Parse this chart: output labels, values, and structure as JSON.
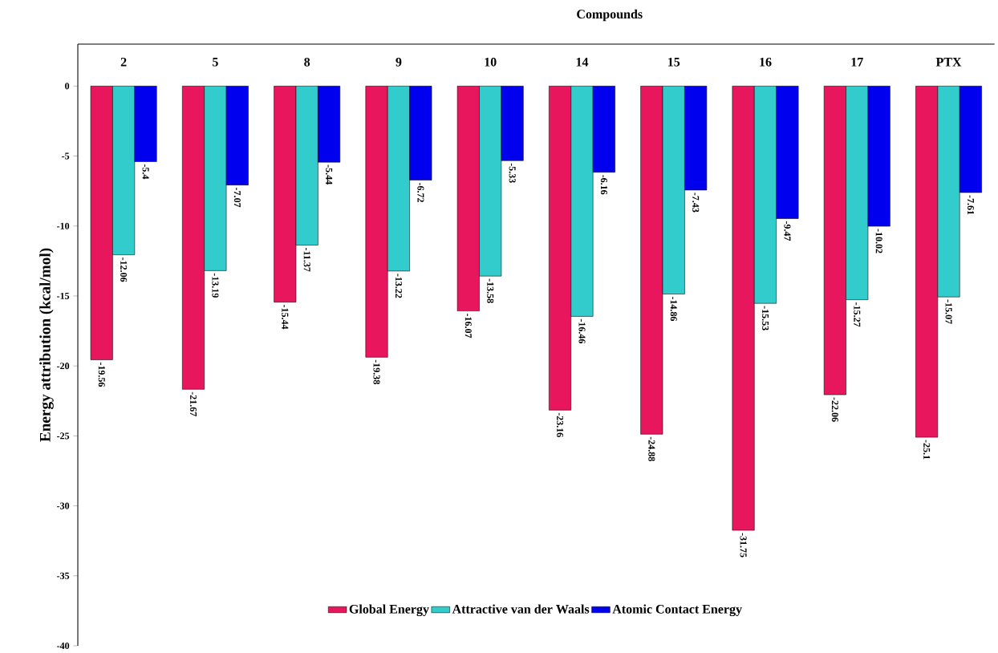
{
  "chart_data": {
    "type": "bar",
    "xlabel": "Compounds",
    "ylabel": "Energy attribution (kcal/mol)",
    "categories": [
      "2",
      "5",
      "8",
      "9",
      "10",
      "14",
      "15",
      "16",
      "17",
      "PTX"
    ],
    "series": [
      {
        "name": "Global Energy",
        "color": "#e8175d",
        "values": [
          -19.56,
          -21.67,
          -15.44,
          -19.38,
          -16.07,
          -23.16,
          -24.88,
          -31.75,
          -22.06,
          -25.1
        ]
      },
      {
        "name": "Attractive van der Waals",
        "color": "#33cccc",
        "values": [
          -12.06,
          -13.19,
          -11.37,
          -13.22,
          -13.58,
          -16.46,
          -14.86,
          -15.53,
          -15.27,
          -15.07
        ]
      },
      {
        "name": "Atomic Contact Energy",
        "color": "#0000ee",
        "values": [
          -5.4,
          -7.07,
          -5.44,
          -6.72,
          -5.33,
          -6.16,
          -7.43,
          -9.47,
          -10.02,
          -7.61
        ]
      }
    ],
    "ylim": [
      -40,
      3
    ],
    "yticks": [
      -40,
      -35,
      -30,
      -25,
      -20,
      -15,
      -10,
      -5,
      0
    ],
    "data_labels": true,
    "legend": "bottom",
    "grid": false
  }
}
